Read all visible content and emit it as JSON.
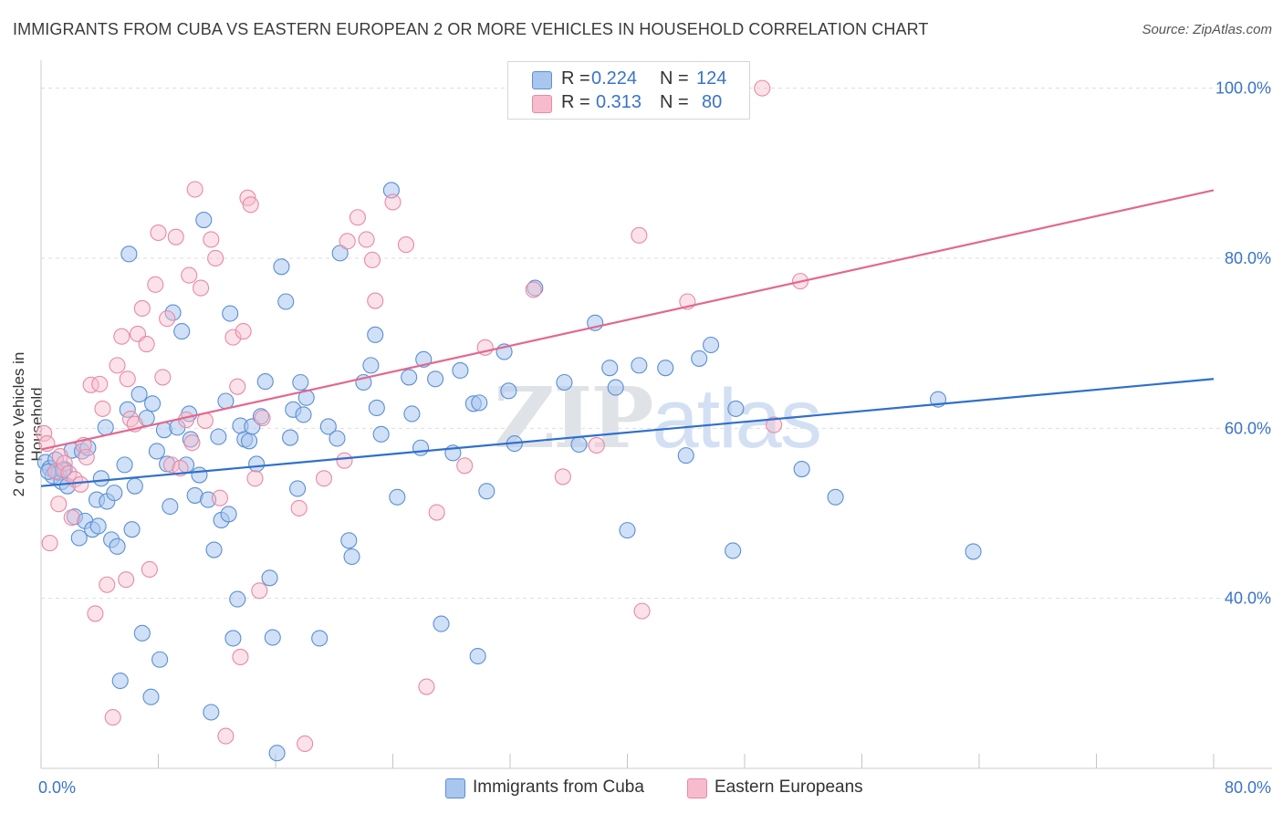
{
  "header": {
    "title": "IMMIGRANTS FROM CUBA VS EASTERN EUROPEAN 2 OR MORE VEHICLES IN HOUSEHOLD CORRELATION CHART",
    "source": "Source: ZipAtlas.com"
  },
  "watermark": "ZIPatlas",
  "legend_top": {
    "rows": [
      {
        "r_label": "R =",
        "r_value": "0.224",
        "n_label": "N =",
        "n_value": "124"
      },
      {
        "r_label": "R =",
        "r_value": "0.313",
        "n_label": "N =",
        "n_value": "80"
      }
    ]
  },
  "legend_bottom": [
    "Immigrants from Cuba",
    "Eastern Europeans"
  ],
  "colors": {
    "blue_fill": "#a9c6ee",
    "blue_stroke": "#5b8fd3",
    "blue_line": "#2f6fcc",
    "pink_fill": "#f6bccd",
    "pink_stroke": "#e68aa8",
    "pink_line": "#e2688f",
    "tick_label": "#3a73c8",
    "grid": "#dddddd"
  },
  "chart_data": {
    "type": "scatter",
    "title": "IMMIGRANTS FROM CUBA VS EASTERN EUROPEAN 2 OR MORE VEHICLES IN HOUSEHOLD CORRELATION CHART",
    "xlabel": "",
    "ylabel": "2 or more Vehicles in Household",
    "xlim": [
      0,
      80
    ],
    "ylim": [
      20,
      102
    ],
    "x_tick_labels": [
      "0.0%",
      "80.0%"
    ],
    "y_ticks": [
      40,
      60,
      80,
      100
    ],
    "y_tick_labels": [
      "40.0%",
      "60.0%",
      "80.0%",
      "100.0%"
    ],
    "grid": true,
    "legend_position": "top-center",
    "series": [
      {
        "name": "Immigrants from Cuba",
        "r": 0.224,
        "n": 124,
        "trend": {
          "x": [
            0,
            80
          ],
          "y": [
            53.2,
            65.8
          ]
        },
        "points": [
          [
            0.3,
            56
          ],
          [
            0.6,
            55.3
          ],
          [
            0.8,
            54.4
          ],
          [
            1.0,
            56.3
          ],
          [
            1.2,
            54.8
          ],
          [
            1.4,
            53.7
          ],
          [
            1.6,
            55.2
          ],
          [
            1.8,
            53.2
          ],
          [
            2.1,
            57.4
          ],
          [
            2.3,
            49.6
          ],
          [
            2.6,
            47.1
          ],
          [
            2.8,
            57.3
          ],
          [
            3.0,
            49.1
          ],
          [
            3.2,
            57.7
          ],
          [
            3.5,
            48.1
          ],
          [
            3.8,
            51.6
          ],
          [
            3.9,
            48.5
          ],
          [
            4.1,
            54.1
          ],
          [
            4.4,
            60.1
          ],
          [
            4.5,
            51.4
          ],
          [
            4.8,
            46.9
          ],
          [
            5.0,
            52.4
          ],
          [
            5.2,
            46.1
          ],
          [
            5.4,
            30.3
          ],
          [
            5.7,
            55.7
          ],
          [
            5.9,
            62.2
          ],
          [
            6.0,
            80.5
          ],
          [
            6.2,
            48.1
          ],
          [
            6.4,
            53.2
          ],
          [
            6.7,
            64.0
          ],
          [
            6.9,
            35.9
          ],
          [
            7.2,
            61.2
          ],
          [
            7.5,
            28.4
          ],
          [
            7.6,
            62.9
          ],
          [
            7.9,
            57.3
          ],
          [
            8.1,
            32.8
          ],
          [
            8.4,
            59.8
          ],
          [
            8.6,
            55.8
          ],
          [
            8.8,
            50.8
          ],
          [
            9.0,
            73.6
          ],
          [
            9.3,
            60.1
          ],
          [
            9.6,
            71.4
          ],
          [
            9.9,
            55.7
          ],
          [
            10.1,
            61.7
          ],
          [
            10.2,
            58.7
          ],
          [
            10.5,
            52.1
          ],
          [
            10.8,
            54.5
          ],
          [
            11.1,
            84.5
          ],
          [
            11.4,
            51.6
          ],
          [
            11.6,
            26.6
          ],
          [
            11.8,
            45.7
          ],
          [
            12.1,
            59.0
          ],
          [
            12.3,
            49.2
          ],
          [
            12.6,
            63.2
          ],
          [
            12.8,
            49.9
          ],
          [
            12.9,
            73.5
          ],
          [
            13.1,
            35.3
          ],
          [
            13.4,
            39.9
          ],
          [
            13.6,
            60.3
          ],
          [
            13.9,
            58.7
          ],
          [
            14.2,
            58.5
          ],
          [
            14.4,
            60.2
          ],
          [
            14.7,
            55.8
          ],
          [
            15.0,
            61.4
          ],
          [
            15.3,
            65.5
          ],
          [
            15.6,
            42.4
          ],
          [
            15.8,
            35.4
          ],
          [
            16.1,
            21.8
          ],
          [
            16.4,
            79.0
          ],
          [
            16.7,
            74.9
          ],
          [
            17.0,
            58.9
          ],
          [
            17.2,
            62.2
          ],
          [
            17.5,
            52.9
          ],
          [
            17.7,
            65.4
          ],
          [
            17.9,
            61.6
          ],
          [
            18.1,
            63.6
          ],
          [
            19.0,
            35.3
          ],
          [
            19.6,
            60.2
          ],
          [
            20.2,
            58.8
          ],
          [
            20.4,
            80.6
          ],
          [
            21.0,
            46.8
          ],
          [
            21.2,
            44.9
          ],
          [
            22.0,
            65.4
          ],
          [
            22.5,
            67.4
          ],
          [
            22.8,
            71.0
          ],
          [
            22.9,
            62.4
          ],
          [
            23.2,
            59.3
          ],
          [
            23.9,
            88.0
          ],
          [
            24.3,
            51.9
          ],
          [
            25.1,
            66.0
          ],
          [
            25.3,
            61.7
          ],
          [
            25.9,
            57.7
          ],
          [
            26.1,
            68.1
          ],
          [
            26.9,
            65.8
          ],
          [
            27.3,
            37.0
          ],
          [
            28.1,
            57.1
          ],
          [
            28.6,
            66.8
          ],
          [
            29.5,
            62.9
          ],
          [
            29.8,
            33.2
          ],
          [
            29.9,
            63.0
          ],
          [
            30.4,
            52.6
          ],
          [
            31.6,
            69.0
          ],
          [
            31.9,
            64.4
          ],
          [
            32.3,
            58.2
          ],
          [
            33.7,
            76.5
          ],
          [
            35.7,
            65.4
          ],
          [
            36.7,
            58.1
          ],
          [
            37.8,
            72.4
          ],
          [
            38.8,
            67.1
          ],
          [
            39.2,
            64.8
          ],
          [
            40.0,
            48.0
          ],
          [
            40.8,
            67.4
          ],
          [
            42.6,
            67.1
          ],
          [
            44.0,
            56.8
          ],
          [
            44.9,
            68.2
          ],
          [
            45.7,
            69.8
          ],
          [
            47.2,
            45.6
          ],
          [
            47.4,
            62.3
          ],
          [
            51.9,
            55.2
          ],
          [
            54.2,
            51.9
          ],
          [
            61.2,
            63.4
          ],
          [
            63.6,
            45.5
          ],
          [
            0.5,
            54.9
          ],
          [
            1.5,
            55.1
          ]
        ]
      },
      {
        "name": "Eastern Europeans",
        "r": 0.313,
        "n": 80,
        "trend": {
          "x": [
            0,
            80
          ],
          "y": [
            57.5,
            88.0
          ]
        },
        "points": [
          [
            0.2,
            59.4
          ],
          [
            0.4,
            58.2
          ],
          [
            0.6,
            46.5
          ],
          [
            1.0,
            54.9
          ],
          [
            1.2,
            51.1
          ],
          [
            1.3,
            56.7
          ],
          [
            1.6,
            55.9
          ],
          [
            1.9,
            54.7
          ],
          [
            2.1,
            49.5
          ],
          [
            2.3,
            54.0
          ],
          [
            2.7,
            53.4
          ],
          [
            2.9,
            58.0
          ],
          [
            3.1,
            56.6
          ],
          [
            3.4,
            65.1
          ],
          [
            3.7,
            38.2
          ],
          [
            4.0,
            65.2
          ],
          [
            4.2,
            62.3
          ],
          [
            4.5,
            41.6
          ],
          [
            4.9,
            26.0
          ],
          [
            5.2,
            67.4
          ],
          [
            5.5,
            70.8
          ],
          [
            5.8,
            42.2
          ],
          [
            5.9,
            65.8
          ],
          [
            6.1,
            61.1
          ],
          [
            6.4,
            60.5
          ],
          [
            6.6,
            71.1
          ],
          [
            6.9,
            74.1
          ],
          [
            7.2,
            69.9
          ],
          [
            7.4,
            43.4
          ],
          [
            7.8,
            76.9
          ],
          [
            8.0,
            83.0
          ],
          [
            8.3,
            66.0
          ],
          [
            8.6,
            72.9
          ],
          [
            8.9,
            55.7
          ],
          [
            9.2,
            82.5
          ],
          [
            9.5,
            55.3
          ],
          [
            9.9,
            61.0
          ],
          [
            10.1,
            78.0
          ],
          [
            10.3,
            58.3
          ],
          [
            10.5,
            88.1
          ],
          [
            10.9,
            76.5
          ],
          [
            11.2,
            60.9
          ],
          [
            11.6,
            82.2
          ],
          [
            11.9,
            80.0
          ],
          [
            12.2,
            51.8
          ],
          [
            12.6,
            23.8
          ],
          [
            13.1,
            70.7
          ],
          [
            13.4,
            64.9
          ],
          [
            13.6,
            33.1
          ],
          [
            13.8,
            71.4
          ],
          [
            14.1,
            87.1
          ],
          [
            14.3,
            86.3
          ],
          [
            14.6,
            54.1
          ],
          [
            14.9,
            40.9
          ],
          [
            15.1,
            61.2
          ],
          [
            17.6,
            50.6
          ],
          [
            18.0,
            22.9
          ],
          [
            19.3,
            54.1
          ],
          [
            20.7,
            56.2
          ],
          [
            21.6,
            84.8
          ],
          [
            22.2,
            82.2
          ],
          [
            22.6,
            79.8
          ],
          [
            22.8,
            75.0
          ],
          [
            24.0,
            86.6
          ],
          [
            24.9,
            81.6
          ],
          [
            26.3,
            29.6
          ],
          [
            27.0,
            50.1
          ],
          [
            28.9,
            55.6
          ],
          [
            30.3,
            69.5
          ],
          [
            33.6,
            76.3
          ],
          [
            35.6,
            54.3
          ],
          [
            37.9,
            58.0
          ],
          [
            40.8,
            82.7
          ],
          [
            41.0,
            38.5
          ],
          [
            44.1,
            74.9
          ],
          [
            47.8,
            100.0
          ],
          [
            49.2,
            100.0
          ],
          [
            50.0,
            60.4
          ],
          [
            51.8,
            77.3
          ],
          [
            20.9,
            82.0
          ]
        ]
      }
    ]
  }
}
